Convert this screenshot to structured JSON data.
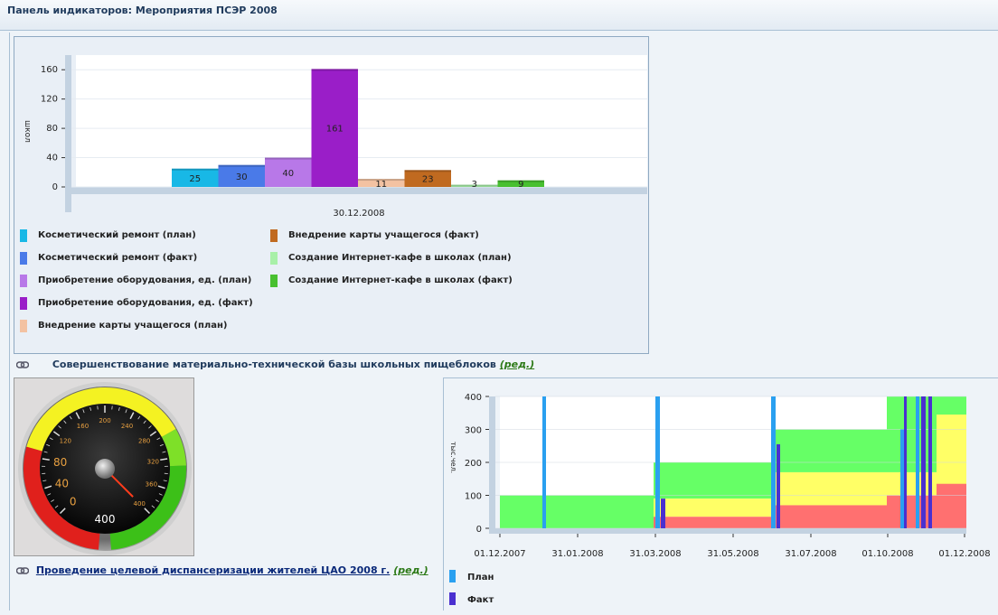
{
  "header": {
    "title": "Панель индикаторов: Мероприятия ПСЭР 2008"
  },
  "bar_chart": {
    "chart_data": {
      "type": "bar",
      "ylabel": "школ",
      "categories": [
        "30.12.2008"
      ],
      "ylim": [
        0,
        180
      ],
      "yticks": [
        0,
        40,
        80,
        120,
        160
      ],
      "series": [
        {
          "name": "Косметический ремонт (план)",
          "value": 25,
          "color": "#18b8e6"
        },
        {
          "name": "Косметический ремонт (факт)",
          "value": 30,
          "color": "#4a7ae8"
        },
        {
          "name": "Приобретение оборудования, ед. (план)",
          "value": 40,
          "color": "#b878e8"
        },
        {
          "name": "Приобретение оборудования, ед. (факт)",
          "value": 161,
          "color": "#9a1ec8"
        },
        {
          "name": "Внедрение карты учащегося (план)",
          "value": 11,
          "color": "#f3c2a2"
        },
        {
          "name": "Внедрение карты учащегося (факт)",
          "value": 23,
          "color": "#c06a20"
        },
        {
          "name": "Создание Интернет-кафе в школах (план)",
          "value": 3,
          "color": "#a8f0a8"
        },
        {
          "name": "Создание Интернет-кафе в школах (факт)",
          "value": 9,
          "color": "#48c030"
        }
      ]
    }
  },
  "link1": {
    "title": "Совершенствование материально-технической базы школьных пищеблоков",
    "edit": "(ред.)"
  },
  "gauge": {
    "value": 400,
    "value_label": "400",
    "scale_labels": [
      "0",
      "40",
      "80",
      "120",
      "160",
      "200",
      "240",
      "280",
      "320",
      "360",
      "400"
    ],
    "colors": {
      "red": "#e0201c",
      "yellow": "#f4f222",
      "green": "#3cc018"
    }
  },
  "link2": {
    "title": "Проведение целевой диспансеризации жителей ЦАО 2008 г.",
    "edit": "(ред.)"
  },
  "line_chart": {
    "chart_data": {
      "type": "area",
      "ylabel": "тыс.чел.",
      "ylim": [
        0,
        400
      ],
      "yticks": [
        0,
        100,
        200,
        300,
        400
      ],
      "xticks": [
        "01.12.2007",
        "31.01.2008",
        "31.03.2008",
        "31.05.2008",
        "31.07.2008",
        "01.10.2008",
        "01.12.2008"
      ],
      "zones": {
        "green": "#66ff66",
        "yellow": "#ffff66",
        "red": "#ff7070"
      },
      "series": [
        {
          "name": "План",
          "color": "#2aa0f0"
        },
        {
          "name": "Факт",
          "color": "#4a30d0"
        }
      ]
    }
  }
}
